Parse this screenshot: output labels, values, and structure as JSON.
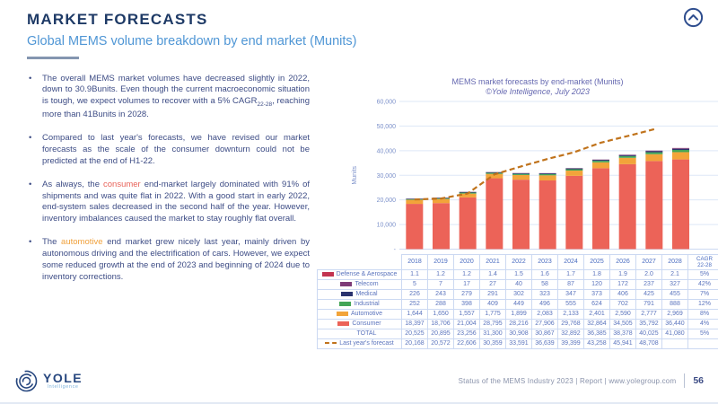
{
  "header": {
    "title": "MARKET FORECASTS",
    "subtitle": "Global MEMS volume breakdown by end market (Munits)"
  },
  "bullets": [
    {
      "segments": [
        {
          "text": "The overall MEMS market volumes have decreased slightly in 2022, down to 30.9Bunits. Even though the current macroeconomic situation is tough, we expect volumes to recover with a 5% CAGR"
        },
        {
          "text": "22-28",
          "sub": true
        },
        {
          "text": ", reaching more than 41Bunits in 2028."
        }
      ]
    },
    {
      "segments": [
        {
          "text": "Compared to last year's forecasts, we have revised our market forecasts as the scale of the consumer downturn could not be predicted at the end of H1-22."
        }
      ]
    },
    {
      "segments": [
        {
          "text": "As always, the "
        },
        {
          "text": "consumer",
          "color": "#e8635a"
        },
        {
          "text": " end-market largely dominated with 91% of shipments and was quite flat in 2022. With a good start in early 2022, end-system sales decreased in the second half of the year. However, inventory imbalances caused the market to stay roughly flat overall."
        }
      ]
    },
    {
      "segments": [
        {
          "text": "The "
        },
        {
          "text": "automotive",
          "color": "#f0a13c"
        },
        {
          "text": " end market grew nicely last year, mainly driven by autonomous driving and the electrification of cars. However, we expect some reduced growth at the end of 2023 and beginning of 2024 due to inventory corrections."
        }
      ]
    }
  ],
  "chart_data": {
    "type": "bar",
    "stacked": true,
    "title": "MEMS market forecasts by end-market (Munits)",
    "subtitle": "©Yole Intelligence, July 2023",
    "ylabel": "Munits",
    "ylim": [
      0,
      60000
    ],
    "ytick_step": 10000,
    "ytick_labels": [
      "-",
      "10,000",
      "20,000",
      "30,000",
      "40,000",
      "50,000",
      "60,000"
    ],
    "grid": true,
    "categories": [
      "2018",
      "2019",
      "2020",
      "2021",
      "2022",
      "2023",
      "2024",
      "2025",
      "2026",
      "2027",
      "2028"
    ],
    "series": [
      {
        "name": "Consumer",
        "color": "#ec6358",
        "values": [
          18397,
          18706,
          21004,
          28795,
          28216,
          27906,
          29768,
          32864,
          34505,
          35792,
          36440
        ]
      },
      {
        "name": "Automotive",
        "color": "#f2a43a",
        "values": [
          1644,
          1650,
          1557,
          1775,
          1899,
          2083,
          2133,
          2401,
          2590,
          2777,
          2969
        ]
      },
      {
        "name": "Industrial",
        "color": "#43a556",
        "values": [
          252,
          288,
          398,
          409,
          449,
          496,
          555,
          624,
          702,
          791,
          888
        ]
      },
      {
        "name": "Medical",
        "color": "#2a326e",
        "values": [
          226,
          243,
          279,
          291,
          302,
          323,
          347,
          373,
          406,
          425,
          455
        ]
      },
      {
        "name": "Telecom",
        "color": "#7d3a78",
        "values": [
          5,
          7,
          17,
          27,
          40,
          58,
          87,
          120,
          172,
          237,
          327
        ]
      },
      {
        "name": "Defense & Aerospace",
        "color": "#c23350",
        "values": [
          1.1,
          1.2,
          1.2,
          1.4,
          1.5,
          1.6,
          1.7,
          1.8,
          1.9,
          2.0,
          2.1
        ]
      }
    ],
    "line_series": {
      "name": "Last year's forecast",
      "color": "#c0731c",
      "dashed": true,
      "values": [
        20168,
        20572,
        22606,
        30359,
        33591,
        36639,
        39399,
        43258,
        45941,
        48708
      ]
    },
    "totals": [
      20525,
      20895,
      23256,
      31300,
      30908,
      30867,
      32892,
      36385,
      38378,
      40025,
      41080
    ]
  },
  "table": {
    "col_headers": [
      "2018",
      "2019",
      "2020",
      "2021",
      "2022",
      "2023",
      "2024",
      "2025",
      "2026",
      "2027",
      "2028",
      "CAGR\n22-28"
    ],
    "rows": [
      {
        "label": "Defense & Aerospace",
        "swatch": "#c23350",
        "values": [
          "1.1",
          "1.2",
          "1.2",
          "1.4",
          "1.5",
          "1.6",
          "1.7",
          "1.8",
          "1.9",
          "2.0",
          "2.1",
          "5%"
        ]
      },
      {
        "label": "Telecom",
        "swatch": "#7d3a78",
        "values": [
          "5",
          "7",
          "17",
          "27",
          "40",
          "58",
          "87",
          "120",
          "172",
          "237",
          "327",
          "42%"
        ]
      },
      {
        "label": "Medical",
        "swatch": "#2a326e",
        "values": [
          "226",
          "243",
          "279",
          "291",
          "302",
          "323",
          "347",
          "373",
          "406",
          "425",
          "455",
          "7%"
        ]
      },
      {
        "label": "Industrial",
        "swatch": "#43a556",
        "values": [
          "252",
          "288",
          "398",
          "409",
          "449",
          "496",
          "555",
          "624",
          "702",
          "791",
          "888",
          "12%"
        ]
      },
      {
        "label": "Automotive",
        "swatch": "#f2a43a",
        "values": [
          "1,644",
          "1,650",
          "1,557",
          "1,775",
          "1,899",
          "2,083",
          "2,133",
          "2,401",
          "2,590",
          "2,777",
          "2,969",
          "8%"
        ]
      },
      {
        "label": "Consumer",
        "swatch": "#ec6358",
        "values": [
          "18,397",
          "18,706",
          "21,004",
          "28,795",
          "28,216",
          "27,906",
          "29,768",
          "32,864",
          "34,505",
          "35,792",
          "36,440",
          "4%"
        ]
      },
      {
        "label": "TOTAL",
        "swatch": null,
        "values": [
          "20,525",
          "20,895",
          "23,256",
          "31,300",
          "30,908",
          "30,867",
          "32,892",
          "36,385",
          "38,378",
          "40,025",
          "41,080",
          "5%"
        ]
      },
      {
        "label": "Last year's forecast",
        "swatch": "dashed",
        "values": [
          "20,168",
          "20,572",
          "22,606",
          "30,359",
          "33,591",
          "36,639",
          "39,399",
          "43,258",
          "45,941",
          "48,708",
          "",
          ""
        ]
      }
    ]
  },
  "footer": {
    "logo_text": "YOLE",
    "logo_sub": "Intelligence",
    "report_line": "Status of the MEMS Industry 2023 | Report | www.yolegroup.com",
    "page_number": "56"
  },
  "colors": {
    "title_navy": "#1e3a66",
    "subtitle_blue": "#4f96d5",
    "body_text": "#3d4c85",
    "consumer_highlight": "#e8635a",
    "automotive_highlight": "#f0a13c",
    "forecast_dash": "#c0731c",
    "table_border": "#ccd9f2"
  }
}
